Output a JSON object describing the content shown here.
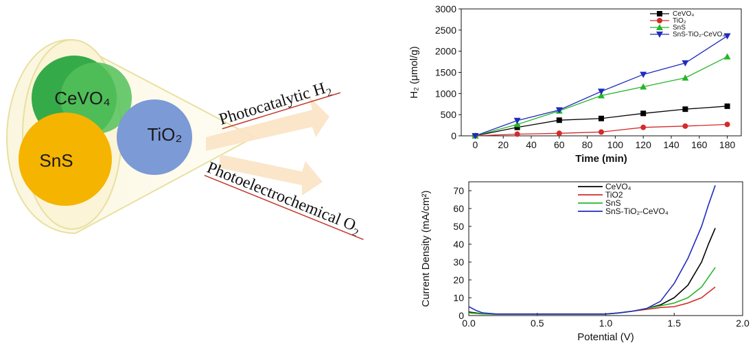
{
  "diagram": {
    "circles": [
      {
        "label": "CeVO₄",
        "color": "#1fa23a"
      },
      {
        "label": "SnS",
        "color": "#f5b400"
      },
      {
        "label": "TiO₂",
        "color": "#7b9ad6"
      }
    ],
    "outline_color": "#e8e0a0",
    "arrow_color": "#fbe3c4",
    "paths": [
      {
        "main": "Photocatalytic H",
        "sub": "2"
      },
      {
        "main": "Photoelectrochemical O",
        "sub": "2"
      }
    ]
  },
  "chart_data": [
    {
      "type": "line",
      "xlabel": "Time (min)",
      "ylabel": "H₂ (μmol/g)",
      "xlim": [
        -10,
        190
      ],
      "ylim": [
        0,
        3000
      ],
      "x_ticks": [
        0,
        20,
        40,
        60,
        80,
        100,
        120,
        140,
        160,
        180
      ],
      "y_ticks": [
        0,
        500,
        1000,
        1500,
        2000,
        2500,
        3000
      ],
      "legend_position": "top-right",
      "x": [
        0,
        30,
        60,
        90,
        120,
        150,
        180
      ],
      "series": [
        {
          "name": "CeVO₄",
          "color": "#000000",
          "marker": "square",
          "values": [
            0,
            200,
            370,
            410,
            530,
            630,
            700
          ]
        },
        {
          "name": "TiO₂",
          "color": "#d42a2a",
          "marker": "circle",
          "values": [
            0,
            40,
            60,
            90,
            200,
            230,
            270
          ]
        },
        {
          "name": "SnS",
          "color": "#27b52a",
          "marker": "triangle-up",
          "values": [
            0,
            270,
            590,
            950,
            1160,
            1370,
            1870
          ]
        },
        {
          "name": "SnS-TiO₂-CeVO₄",
          "color": "#1f2bbd",
          "marker": "triangle-down",
          "values": [
            0,
            360,
            610,
            1050,
            1450,
            1720,
            2360
          ]
        }
      ]
    },
    {
      "type": "line",
      "xlabel": "Potential (V)",
      "ylabel": "Current Density (mA/cm²)",
      "xlim": [
        0,
        2.0
      ],
      "ylim": [
        0,
        75
      ],
      "x_ticks": [
        "0.0",
        "0.5",
        "1.0",
        "1.5",
        "2.0"
      ],
      "y_ticks": [
        0,
        10,
        20,
        30,
        40,
        50,
        60,
        70
      ],
      "legend_position": "top-right",
      "series": [
        {
          "name": "CeVO₄",
          "color": "#000000",
          "points": [
            [
              0,
              2
            ],
            [
              0.1,
              1
            ],
            [
              0.2,
              0.8
            ],
            [
              1.0,
              0.8
            ],
            [
              1.1,
              1.5
            ],
            [
              1.2,
              2.5
            ],
            [
              1.3,
              4
            ],
            [
              1.4,
              6
            ],
            [
              1.5,
              10
            ],
            [
              1.6,
              17
            ],
            [
              1.7,
              30
            ],
            [
              1.75,
              40
            ],
            [
              1.8,
              49
            ]
          ]
        },
        {
          "name": "TiO2",
          "color": "#d42a2a",
          "points": [
            [
              0,
              1.5
            ],
            [
              0.1,
              0.9
            ],
            [
              0.2,
              0.8
            ],
            [
              1.0,
              0.8
            ],
            [
              1.1,
              1.5
            ],
            [
              1.2,
              2.5
            ],
            [
              1.3,
              3.5
            ],
            [
              1.4,
              4.5
            ],
            [
              1.5,
              5
            ],
            [
              1.6,
              7
            ],
            [
              1.7,
              10
            ],
            [
              1.8,
              16
            ]
          ]
        },
        {
          "name": "SnS",
          "color": "#27b52a",
          "points": [
            [
              0,
              1.5
            ],
            [
              0.1,
              0.9
            ],
            [
              0.2,
              0.8
            ],
            [
              1.0,
              0.8
            ],
            [
              1.1,
              1.5
            ],
            [
              1.2,
              2.5
            ],
            [
              1.3,
              4
            ],
            [
              1.4,
              5.5
            ],
            [
              1.5,
              7
            ],
            [
              1.6,
              10
            ],
            [
              1.7,
              16
            ],
            [
              1.8,
              27
            ]
          ]
        },
        {
          "name": "SnS-TiO₂-CeVO₄",
          "color": "#1f2bbd",
          "points": [
            [
              0,
              5
            ],
            [
              0.05,
              3
            ],
            [
              0.1,
              1.5
            ],
            [
              0.2,
              0.9
            ],
            [
              1.0,
              0.9
            ],
            [
              1.1,
              1.5
            ],
            [
              1.2,
              2.5
            ],
            [
              1.3,
              4
            ],
            [
              1.4,
              8
            ],
            [
              1.5,
              18
            ],
            [
              1.6,
              32
            ],
            [
              1.7,
              50
            ],
            [
              1.75,
              62
            ],
            [
              1.8,
              73
            ]
          ]
        }
      ]
    }
  ]
}
